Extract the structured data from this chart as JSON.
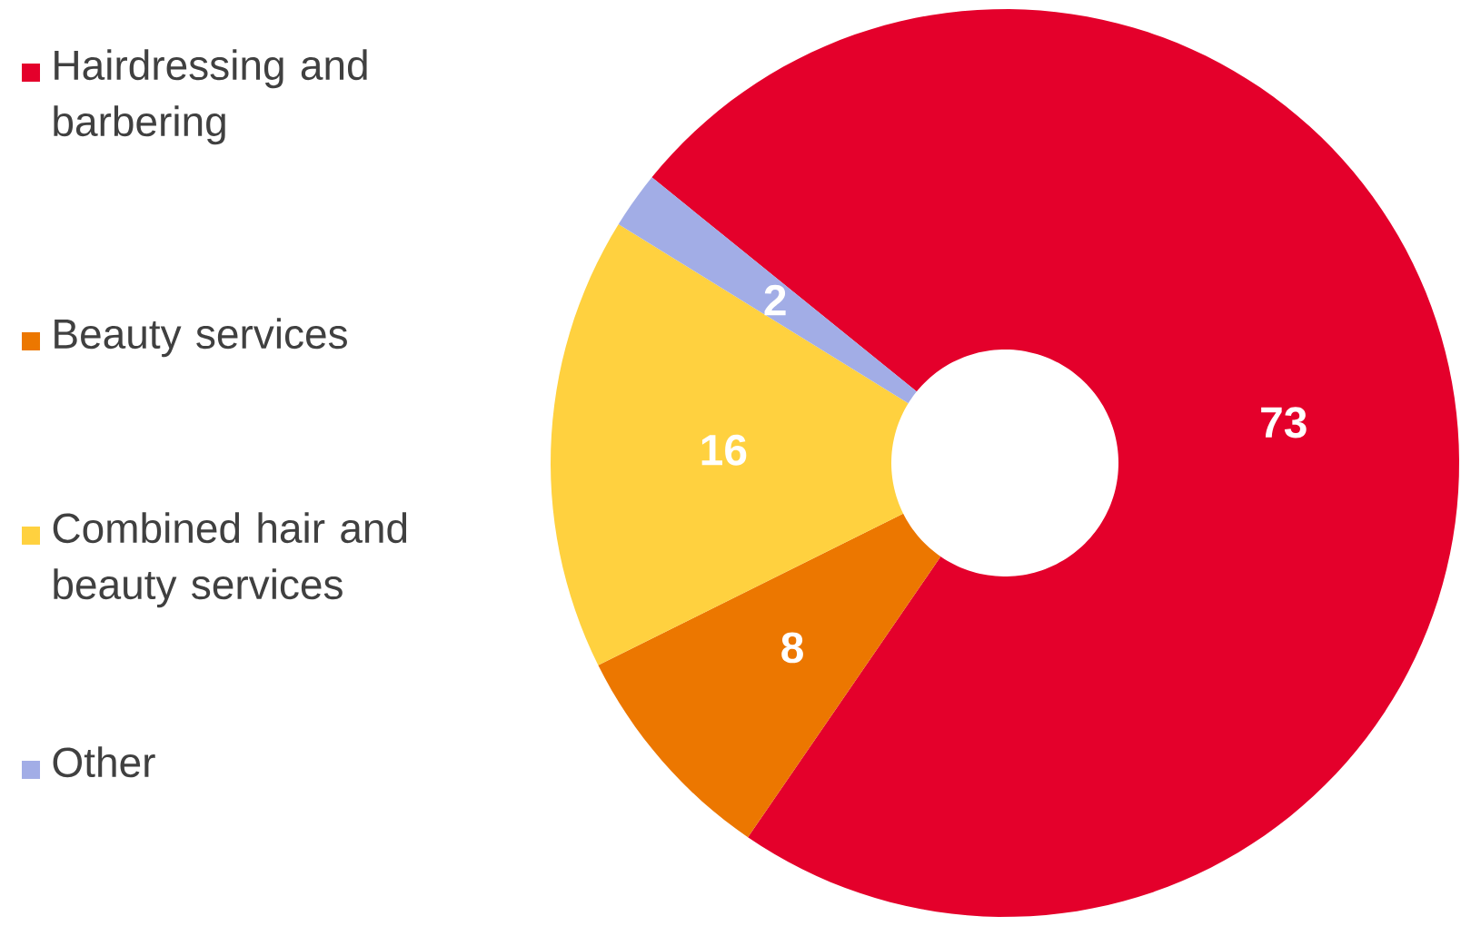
{
  "chart_data": {
    "type": "donut",
    "categories": [
      "Hairdressing and barbering",
      "Beauty services",
      "Combined hair and beauty services",
      "Other"
    ],
    "values": [
      73,
      8,
      16,
      2
    ],
    "colors": [
      "#e4002b",
      "#ec7700",
      "#ffd13f",
      "#a2ade6"
    ],
    "data_labels": true,
    "legend": "left"
  }
}
